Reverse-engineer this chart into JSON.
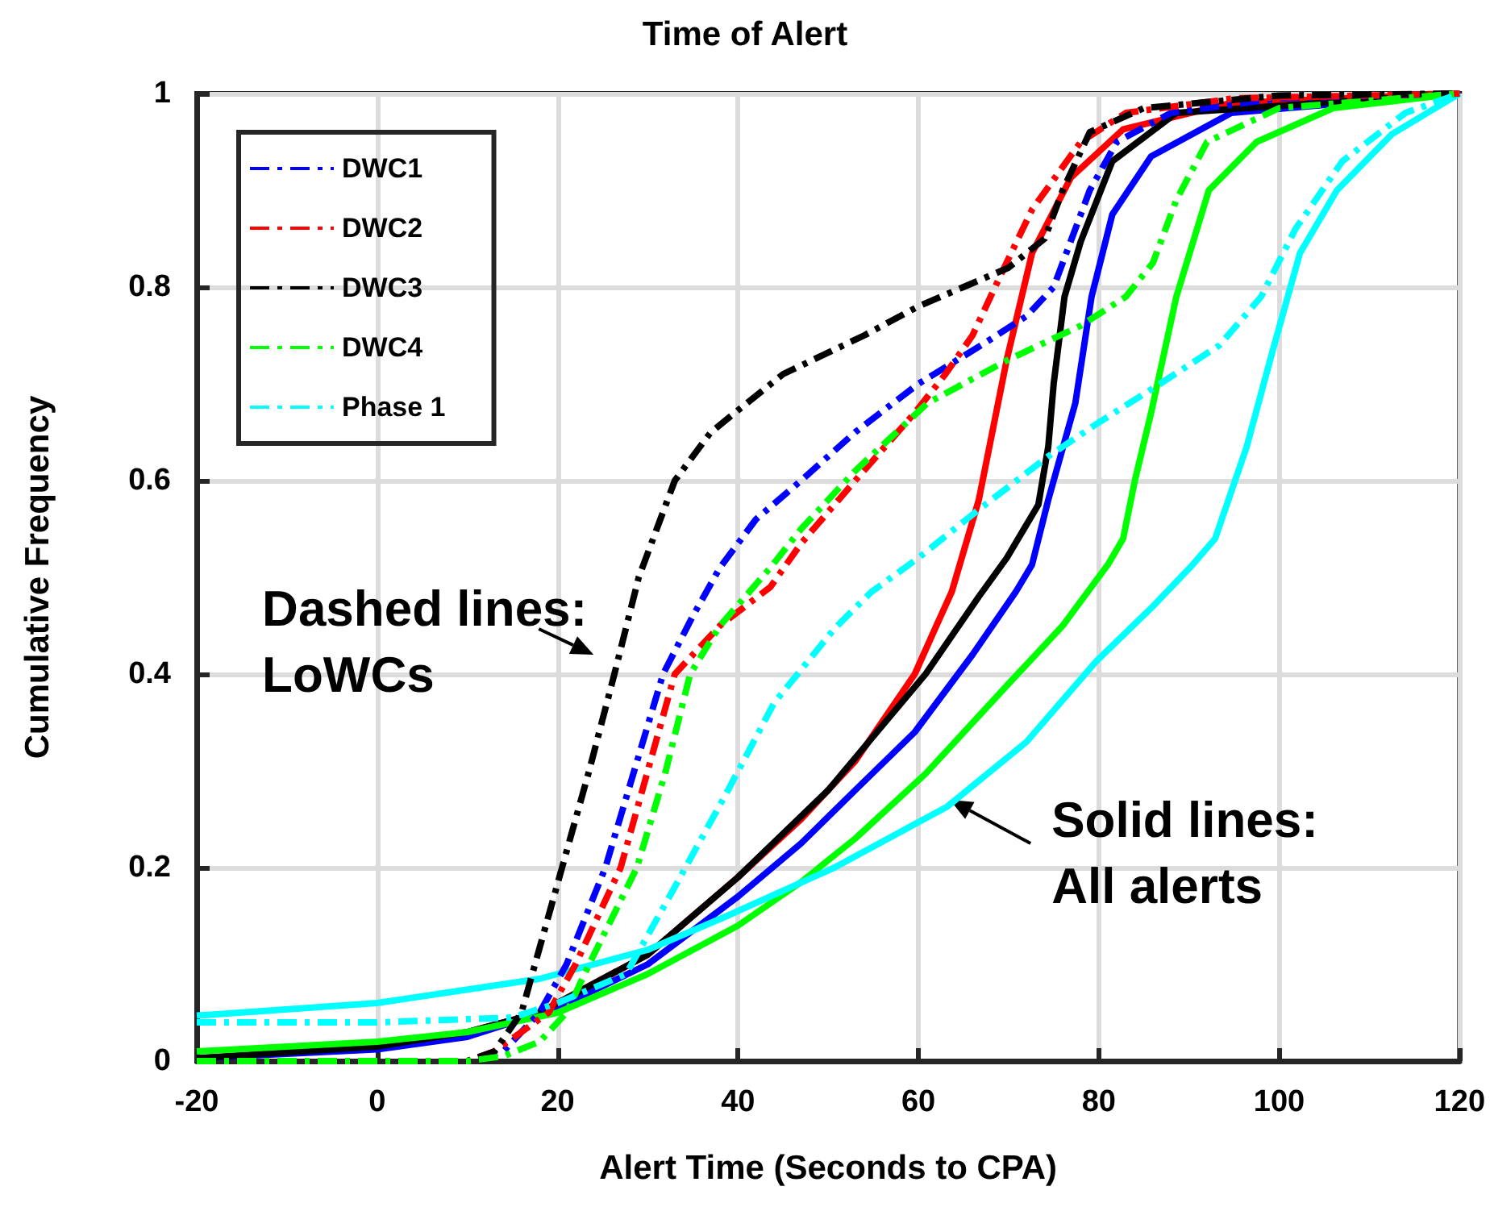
{
  "chart_data": {
    "type": "line",
    "title": "Time of Alert",
    "xlabel": "Alert Time (Seconds to CPA)",
    "ylabel": "Cumulative Frequency",
    "xlim": [
      -20,
      120
    ],
    "xticks": [
      -20,
      0,
      20,
      40,
      60,
      80,
      100,
      120
    ],
    "ylim": [
      0,
      1
    ],
    "yticks": [
      0,
      0.2,
      0.4,
      0.6,
      0.8,
      1
    ],
    "grid": true,
    "legend": "top left",
    "annotations": [
      {
        "text": "Dashed lines:\nLoWCs",
        "x": 26.5,
        "y": 0.42
      },
      {
        "text": "Solid lines:\nAll alerts",
        "x": 63.5,
        "y": 0.27
      }
    ],
    "series": [
      {
        "name": "DWC1",
        "color": "#0000ff",
        "line_style": "dashed",
        "x": [
          -20,
          10,
          14,
          18,
          21,
          25.3,
          28.5,
          31.7,
          35,
          38,
          42,
          47,
          53,
          60,
          67,
          72,
          75,
          77,
          79,
          82,
          88,
          100,
          120
        ],
        "values": [
          0,
          0,
          0.01,
          0.05,
          0.1,
          0.2,
          0.3,
          0.4,
          0.46,
          0.51,
          0.56,
          0.6,
          0.65,
          0.7,
          0.74,
          0.77,
          0.8,
          0.85,
          0.9,
          0.95,
          0.98,
          0.995,
          1
        ]
      },
      {
        "name": "DWC2",
        "color": "#ff0000",
        "line_style": "dashed",
        "x": [
          -20,
          10,
          13,
          19,
          22,
          27,
          30,
          33,
          38,
          43.6,
          47,
          53,
          59.6,
          63,
          66,
          69,
          72.6,
          78,
          83,
          95,
          120
        ],
        "values": [
          0,
          0,
          0.01,
          0.05,
          0.1,
          0.2,
          0.3,
          0.4,
          0.45,
          0.49,
          0.535,
          0.6,
          0.67,
          0.71,
          0.75,
          0.81,
          0.88,
          0.95,
          0.98,
          0.995,
          1
        ]
      },
      {
        "name": "DWC3",
        "color": "#000000",
        "line_style": "dashed",
        "x": [
          -20,
          10,
          13,
          16,
          17.5,
          20.5,
          23.5,
          26.3,
          29,
          33,
          37,
          45,
          54,
          60,
          65,
          70,
          74,
          76,
          79,
          85,
          100,
          120
        ],
        "values": [
          0,
          0,
          0.01,
          0.05,
          0.1,
          0.2,
          0.3,
          0.4,
          0.5,
          0.6,
          0.65,
          0.71,
          0.75,
          0.78,
          0.8,
          0.82,
          0.85,
          0.9,
          0.96,
          0.985,
          0.998,
          1
        ]
      },
      {
        "name": "DWC4",
        "color": "#00ff00",
        "line_style": "dashed",
        "x": [
          -20,
          10,
          14,
          18,
          21,
          23.5,
          28.8,
          32,
          34.7,
          38,
          43.6,
          47,
          53,
          61,
          70,
          78,
          83,
          86,
          88.6,
          92,
          100,
          120
        ],
        "values": [
          0,
          0,
          0.005,
          0.02,
          0.05,
          0.1,
          0.2,
          0.3,
          0.4,
          0.45,
          0.51,
          0.55,
          0.61,
          0.68,
          0.725,
          0.76,
          0.79,
          0.825,
          0.89,
          0.95,
          0.985,
          1
        ]
      },
      {
        "name": "Phase 1",
        "color": "#00ffff",
        "line_style": "dashed",
        "x": [
          -20,
          0,
          15,
          20,
          27.6,
          33,
          38.9,
          44,
          50.7,
          54.8,
          60,
          66.7,
          74.4,
          80,
          86.8,
          93.4,
          98,
          101.8,
          107,
          114,
          120
        ],
        "values": [
          0.04,
          0.04,
          0.045,
          0.06,
          0.09,
          0.18,
          0.28,
          0.37,
          0.447,
          0.485,
          0.52,
          0.57,
          0.625,
          0.66,
          0.7,
          0.74,
          0.79,
          0.86,
          0.93,
          0.98,
          1
        ]
      },
      {
        "color": "#0000ff",
        "line_style": "solid",
        "x": [
          -20,
          0,
          10,
          20,
          30,
          40,
          47,
          53,
          59.6,
          66,
          70.8,
          72.6,
          74.4,
          77.4,
          79.2,
          81.5,
          85.8,
          94.7,
          120
        ],
        "values": [
          0.003,
          0.012,
          0.025,
          0.055,
          0.1,
          0.17,
          0.225,
          0.28,
          0.34,
          0.42,
          0.485,
          0.513,
          0.58,
          0.68,
          0.79,
          0.875,
          0.935,
          0.98,
          1
        ]
      },
      {
        "color": "#ff0000",
        "line_style": "solid",
        "x": [
          10,
          18,
          30,
          40,
          47,
          53,
          59.6,
          62,
          63.7,
          66.7,
          69.8,
          72.6,
          76.9,
          82.7,
          94.6,
          120
        ],
        "values": [
          0.03,
          0.05,
          0.11,
          0.19,
          0.25,
          0.31,
          0.4,
          0.45,
          0.485,
          0.58,
          0.725,
          0.835,
          0.913,
          0.963,
          0.99,
          1
        ]
      },
      {
        "color": "#000000",
        "line_style": "solid",
        "x": [
          -20,
          0,
          10,
          18,
          30,
          40,
          50,
          60.8,
          66.7,
          69.8,
          73.3,
          74.4,
          75,
          76.2,
          78,
          81.5,
          88.6,
          120
        ],
        "values": [
          0.003,
          0.015,
          0.03,
          0.05,
          0.11,
          0.19,
          0.28,
          0.4,
          0.48,
          0.52,
          0.575,
          0.635,
          0.7,
          0.79,
          0.847,
          0.93,
          0.98,
          1
        ]
      },
      {
        "color": "#00ff00",
        "line_style": "solid",
        "x": [
          -20,
          0,
          10,
          20,
          30,
          40,
          47,
          53,
          60.8,
          70,
          76,
          81,
          82.7,
          84,
          85.8,
          88.6,
          92.2,
          97.5,
          106,
          120
        ],
        "values": [
          0.01,
          0.02,
          0.03,
          0.05,
          0.09,
          0.14,
          0.185,
          0.23,
          0.297,
          0.39,
          0.45,
          0.513,
          0.54,
          0.6,
          0.67,
          0.79,
          0.9,
          0.95,
          0.985,
          1
        ]
      },
      {
        "color": "#00ffff",
        "line_style": "solid",
        "x": [
          -20,
          0,
          18,
          30,
          38.8,
          50.7,
          63.2,
          72,
          79.7,
          86,
          90.4,
          92.9,
          96.4,
          99.3,
          102.3,
          106.4,
          112.5,
          120
        ],
        "values": [
          0.047,
          0.06,
          0.085,
          0.115,
          0.15,
          0.2,
          0.263,
          0.33,
          0.413,
          0.47,
          0.513,
          0.54,
          0.635,
          0.735,
          0.835,
          0.9,
          0.958,
          1
        ]
      }
    ]
  }
}
